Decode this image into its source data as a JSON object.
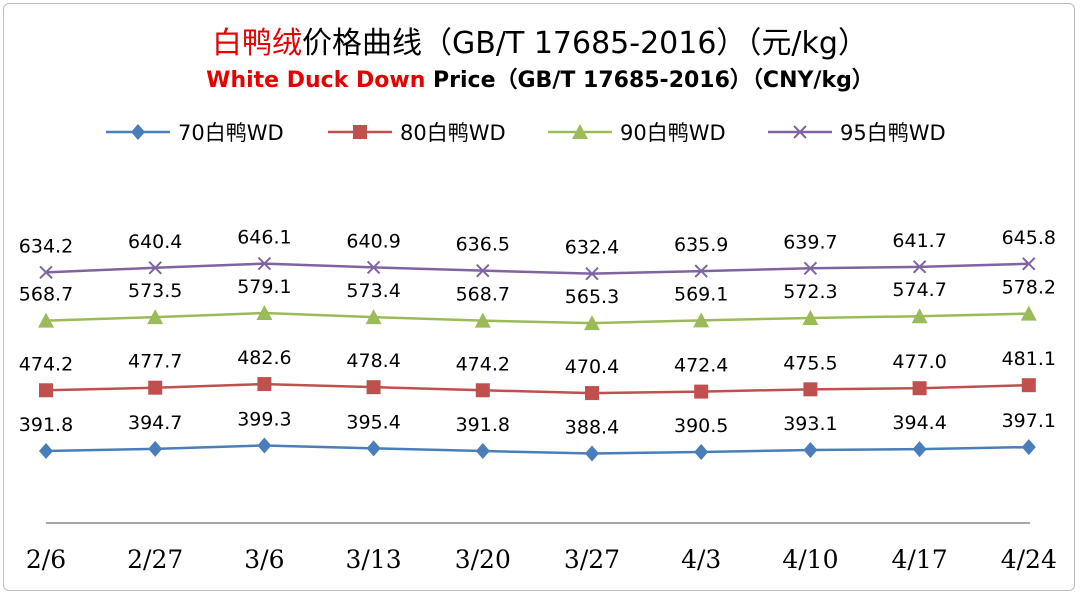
{
  "title": {
    "cn_red": "白鸭绒",
    "cn_rest": "价格曲线（GB/T 17685-2016）（元/kg）",
    "en_red": "White Duck Down",
    "en_rest": " Price（GB/T 17685-2016）（CNY/kg）"
  },
  "colors": {
    "series": [
      "#4a7ebb",
      "#c0504d",
      "#9bbb59",
      "#8064a2"
    ],
    "axis": "#8c8c8c",
    "title_red": "#e60000"
  },
  "chart_data": {
    "type": "line",
    "x": [
      "2/6",
      "2/27",
      "3/6",
      "3/13",
      "3/20",
      "3/27",
      "4/3",
      "4/10",
      "4/17",
      "4/24"
    ],
    "legend_position": "top",
    "grid": false,
    "series": [
      {
        "name": "70白鸭WD",
        "marker": "diamond",
        "values": [
          391.8,
          394.7,
          399.3,
          395.4,
          391.8,
          388.4,
          390.5,
          393.1,
          394.4,
          397.1
        ]
      },
      {
        "name": "80白鸭WD",
        "marker": "square",
        "values": [
          474.2,
          477.7,
          482.6,
          478.4,
          474.2,
          470.4,
          472.4,
          475.5,
          477.0,
          481.1
        ]
      },
      {
        "name": "90白鸭WD",
        "marker": "triangle",
        "values": [
          568.7,
          573.5,
          579.1,
          573.4,
          568.7,
          565.3,
          569.1,
          572.3,
          574.7,
          578.2
        ]
      },
      {
        "name": "95白鸭WD",
        "marker": "x",
        "values": [
          634.2,
          640.4,
          646.1,
          640.9,
          636.5,
          632.4,
          635.9,
          639.7,
          641.7,
          645.8
        ]
      }
    ]
  }
}
